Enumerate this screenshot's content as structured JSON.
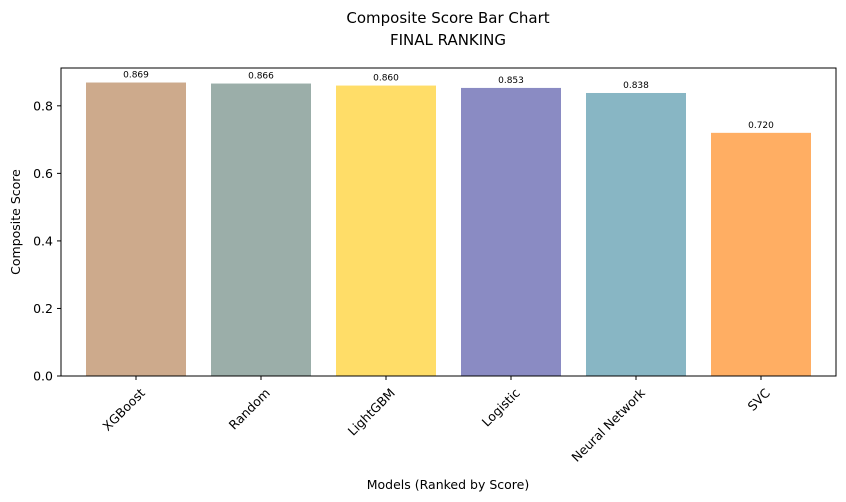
{
  "chart_data": {
    "type": "bar",
    "title": "Composite Score Bar Chart",
    "subtitle": "FINAL RANKING",
    "xlabel": "Models (Ranked by Score)",
    "ylabel": "Composite Score",
    "categories": [
      "XGBoost",
      "Random",
      "LightGBM",
      "Logistic",
      "Neural Network",
      "SVC"
    ],
    "values": [
      0.869,
      0.866,
      0.86,
      0.853,
      0.838,
      0.72
    ],
    "data_labels": [
      "0.869",
      "0.866",
      "0.860",
      "0.853",
      "0.838",
      "0.720"
    ],
    "colors": [
      "#CDAA8C",
      "#9BAEA9",
      "#FFDD68",
      "#8A8BC3",
      "#88B6C4",
      "#FFAE63"
    ],
    "ylim": [
      0,
      0.912
    ],
    "yticks": [
      0.0,
      0.2,
      0.4,
      0.6,
      0.8
    ],
    "ytick_labels": [
      "0.0",
      "0.2",
      "0.4",
      "0.6",
      "0.8"
    ],
    "grid": false,
    "legend": "none"
  }
}
